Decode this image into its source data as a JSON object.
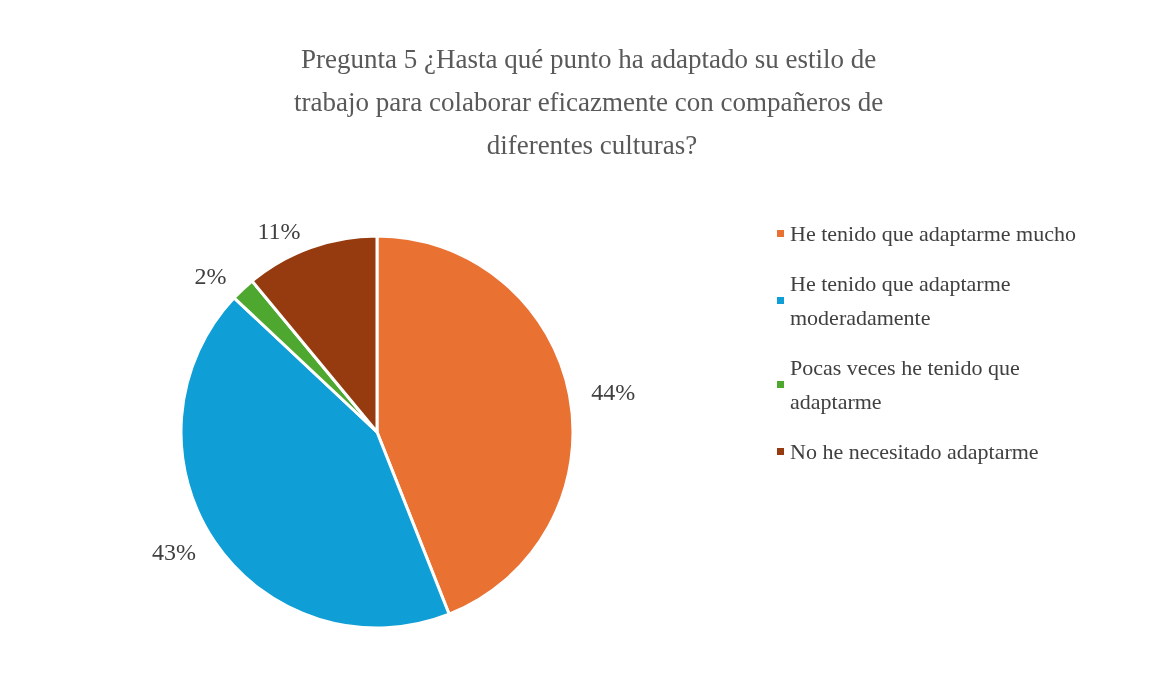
{
  "chart_data": {
    "type": "pie",
    "title": "Pregunta 5 ¿Hasta qué punto ha adaptado su estilo de trabajo para colaborar eficazmente con compañeros de diferentes culturas?",
    "categories": [
      "He tenido que adaptarme mucho",
      "He tenido que adaptarme moderadamente",
      "Pocas veces he tenido que adaptarme",
      "No he necesitado adaptarme"
    ],
    "values": [
      44,
      43,
      2,
      11
    ],
    "colors": [
      "#e97132",
      "#0f9ed5",
      "#4ea72e",
      "#953b0f"
    ],
    "value_labels": [
      "44%",
      "43%",
      "2%",
      "11%"
    ],
    "legend": "right"
  }
}
